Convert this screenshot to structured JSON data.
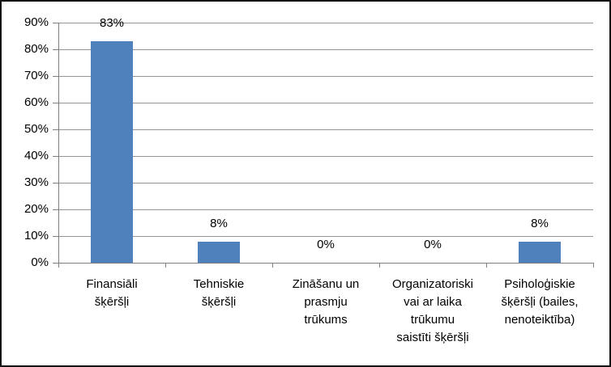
{
  "chart": {
    "background": "#FFFFFF",
    "frame_border_color": "#141414"
  },
  "chart_data": {
    "type": "bar",
    "title": "",
    "xlabel": "",
    "ylabel": "",
    "unit": "%",
    "categories": [
      "Finansiāli šķēršļi",
      "Tehniskie šķēršļi",
      "Zināšanu un prasmju trūkums",
      "Organizatoriski vai ar laika trūkumu saistīti šķēršļi",
      "Psiholoģiskie šķēršļi (bailes, nenoteiktība)"
    ],
    "category_lines": [
      [
        "Finansiāli",
        "šķēršļi"
      ],
      [
        "Tehniskie",
        "šķēršļi"
      ],
      [
        "Zināšanu un",
        "prasmju",
        "trūkums"
      ],
      [
        "Organizatoriski",
        "vai ar laika",
        "trūkumu",
        "saistīti šķēršļi"
      ],
      [
        "Psiholoģiskie",
        "šķēršļi (bailes,",
        "nenoteiktība)"
      ]
    ],
    "values": [
      83,
      8,
      0,
      0,
      8
    ],
    "data_labels": [
      "83%",
      "8%",
      "0%",
      "0%",
      "8%"
    ],
    "y_tick_labels": [
      "0%",
      "10%",
      "20%",
      "30%",
      "40%",
      "50%",
      "60%",
      "70%",
      "80%",
      "90%"
    ],
    "ylim": [
      0,
      90
    ],
    "grid": true,
    "legend": false,
    "bar_color": "#4F81BD",
    "gridline_color": "#949494",
    "axis_color": "#7F7F7F",
    "text_color": "#000000"
  }
}
